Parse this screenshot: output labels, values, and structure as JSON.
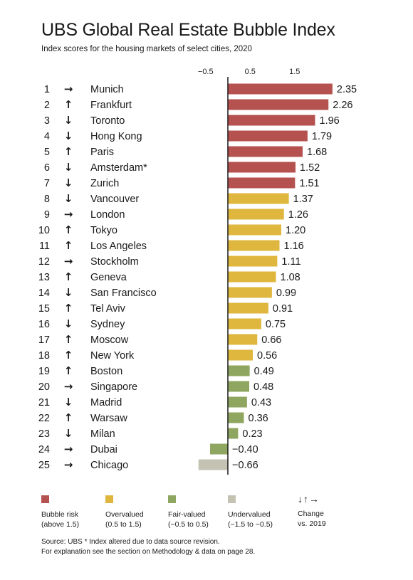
{
  "title": "UBS Global Real Estate Bubble Index",
  "subtitle": "Index scores for the housing markets of select cities, 2020",
  "colors": {
    "bubble": "#b5524f",
    "overvalued": "#dfb73e",
    "fair": "#8fa660",
    "undervalued": "#c4c2b2"
  },
  "chart_data": {
    "type": "bar",
    "orientation": "horizontal",
    "xticks": [
      "−0.5",
      "0.5",
      "1.5"
    ],
    "xtick_values": [
      -0.5,
      0.5,
      1.5
    ],
    "xlim": [
      -0.8,
      2.55
    ],
    "rows": [
      {
        "rank": "1",
        "change": "→",
        "city": "Munich",
        "value": 2.35,
        "label": "2.35",
        "category": "bubble"
      },
      {
        "rank": "2",
        "change": "↑",
        "city": "Frankfurt",
        "value": 2.26,
        "label": "2.26",
        "category": "bubble"
      },
      {
        "rank": "3",
        "change": "↓",
        "city": "Toronto",
        "value": 1.96,
        "label": "1.96",
        "category": "bubble"
      },
      {
        "rank": "4",
        "change": "↓",
        "city": "Hong Kong",
        "value": 1.79,
        "label": "1.79",
        "category": "bubble"
      },
      {
        "rank": "5",
        "change": "↑",
        "city": "Paris",
        "value": 1.68,
        "label": "1.68",
        "category": "bubble"
      },
      {
        "rank": "6",
        "change": "↓",
        "city": "Amsterdam*",
        "value": 1.52,
        "label": "1.52",
        "category": "bubble"
      },
      {
        "rank": "7",
        "change": "↓",
        "city": "Zurich",
        "value": 1.51,
        "label": "1.51",
        "category": "bubble"
      },
      {
        "rank": "8",
        "change": "↓",
        "city": "Vancouver",
        "value": 1.37,
        "label": "1.37",
        "category": "overvalued"
      },
      {
        "rank": "9",
        "change": "→",
        "city": "London",
        "value": 1.26,
        "label": "1.26",
        "category": "overvalued"
      },
      {
        "rank": "10",
        "change": "↑",
        "city": "Tokyo",
        "value": 1.2,
        "label": "1.20",
        "category": "overvalued"
      },
      {
        "rank": "11",
        "change": "↑",
        "city": "Los Angeles",
        "value": 1.16,
        "label": "1.16",
        "category": "overvalued"
      },
      {
        "rank": "12",
        "change": "→",
        "city": "Stockholm",
        "value": 1.11,
        "label": "1.11",
        "category": "overvalued"
      },
      {
        "rank": "13",
        "change": "↑",
        "city": "Geneva",
        "value": 1.08,
        "label": "1.08",
        "category": "overvalued"
      },
      {
        "rank": "14",
        "change": "↓",
        "city": "San Francisco",
        "value": 0.99,
        "label": "0.99",
        "category": "overvalued"
      },
      {
        "rank": "15",
        "change": "↑",
        "city": "Tel Aviv",
        "value": 0.91,
        "label": "0.91",
        "category": "overvalued"
      },
      {
        "rank": "16",
        "change": "↓",
        "city": "Sydney",
        "value": 0.75,
        "label": "0.75",
        "category": "overvalued"
      },
      {
        "rank": "17",
        "change": "↑",
        "city": "Moscow",
        "value": 0.66,
        "label": "0.66",
        "category": "overvalued"
      },
      {
        "rank": "18",
        "change": "↑",
        "city": "New York",
        "value": 0.56,
        "label": "0.56",
        "category": "overvalued"
      },
      {
        "rank": "19",
        "change": "↑",
        "city": "Boston",
        "value": 0.49,
        "label": "0.49",
        "category": "fair"
      },
      {
        "rank": "20",
        "change": "→",
        "city": "Singapore",
        "value": 0.48,
        "label": "0.48",
        "category": "fair"
      },
      {
        "rank": "21",
        "change": "↓",
        "city": "Madrid",
        "value": 0.43,
        "label": "0.43",
        "category": "fair"
      },
      {
        "rank": "22",
        "change": "↑",
        "city": "Warsaw",
        "value": 0.36,
        "label": "0.36",
        "category": "fair"
      },
      {
        "rank": "23",
        "change": "↓",
        "city": "Milan",
        "value": 0.23,
        "label": "0.23",
        "category": "fair"
      },
      {
        "rank": "24",
        "change": "→",
        "city": "Dubai",
        "value": -0.4,
        "label": "−0.40",
        "category": "fair"
      },
      {
        "rank": "25",
        "change": "→",
        "city": "Chicago",
        "value": -0.66,
        "label": "−0.66",
        "category": "undervalued"
      }
    ]
  },
  "legend": {
    "bubble": {
      "line1": "Bubble risk",
      "line2": "(above 1.5)"
    },
    "overvalued": {
      "line1": "Overvalued",
      "line2": "(0.5 to 1.5)"
    },
    "fair": {
      "line1": "Fair-valued",
      "line2": "(−0.5 to 0.5)"
    },
    "undervalued": {
      "line1": "Undervalued",
      "line2": "(−1.5 to −0.5)"
    },
    "change": {
      "icons": "↓↑→",
      "line1": "Change",
      "line2": "vs. 2019"
    }
  },
  "source": {
    "line1": "Source: UBS  * Index altered due to data source revision.",
    "line2": "For explanation see the section on Methodology & data on page 28."
  }
}
